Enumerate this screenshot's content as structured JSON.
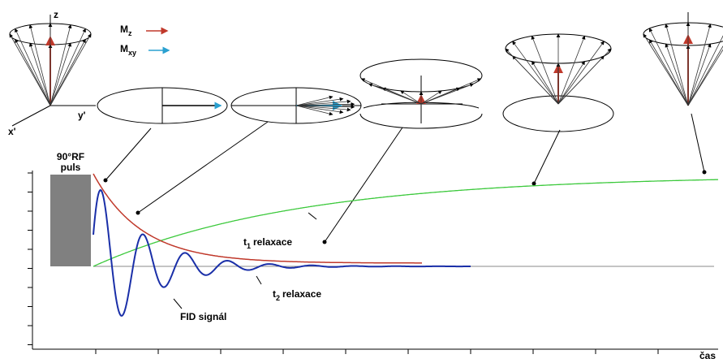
{
  "axes_labels": {
    "z": "z",
    "x": "x'",
    "y": "y'"
  },
  "legend": [
    {
      "symbol": "M",
      "subscript": "z"
    },
    {
      "symbol": "M",
      "subscript": "xy"
    }
  ],
  "pulse_label": {
    "line1": "90°RF",
    "line2": "puls"
  },
  "annotations": {
    "t1": {
      "symbol": "t",
      "subscript": "1",
      "text": "relaxace"
    },
    "t2": {
      "symbol": "t",
      "subscript": "2",
      "text": "relaxace"
    },
    "fid": "FID signál"
  },
  "x_axis_label": "čas"
}
